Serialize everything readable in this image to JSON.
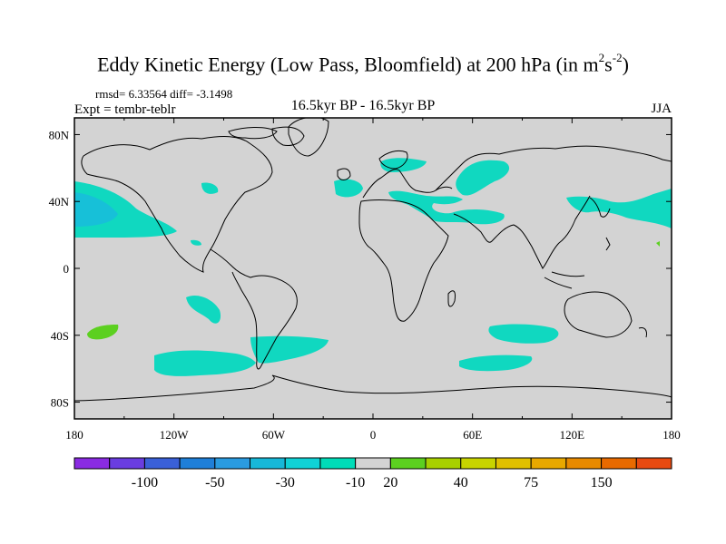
{
  "title": {
    "main": "Eddy Kinetic Energy (Low Pass, Bloomfield) at 200 hPa (in m",
    "sup1": "2",
    "mid": "s",
    "sup2": "-2",
    "end": ")"
  },
  "stats": {
    "text": "rmsd= 6.33564 diff= -3.1498"
  },
  "experiment": {
    "text": "Expt = tembr-teblr"
  },
  "period": {
    "text": "16.5kyr BP - 16.5kyr BP"
  },
  "season": {
    "text": "JJA"
  },
  "map": {
    "projection": "cylindrical equidistant",
    "lat_labels": [
      "80N",
      "40N",
      "0",
      "40S",
      "80S"
    ],
    "lon_labels": [
      "180",
      "120W",
      "60W",
      "0",
      "60E",
      "120E",
      "180"
    ],
    "background_color": "#d3d3d3"
  },
  "colorbar": {
    "labels": [
      "-100",
      "-50",
      "-30",
      "-10",
      "20",
      "40",
      "75",
      "150"
    ],
    "colors": [
      "#8a2be2",
      "#6a3de0",
      "#3a60d8",
      "#1f7fd8",
      "#2a9be0",
      "#17b8d8",
      "#10d2d6",
      "#00dcb8",
      "#d3d3d3",
      "#5cd020",
      "#a8d000",
      "#c8d400",
      "#e0c000",
      "#e8a800",
      "#e88a00",
      "#e86a00",
      "#e84a10"
    ]
  }
}
